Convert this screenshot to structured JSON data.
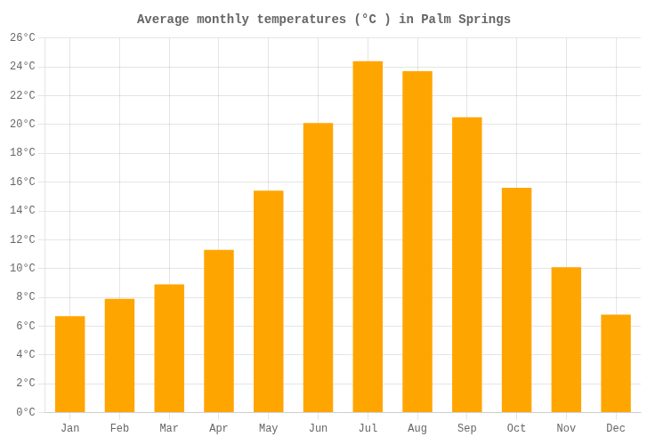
{
  "chart_data": {
    "type": "bar",
    "title": "Average monthly temperatures (°C ) in Palm Springs",
    "categories": [
      "Jan",
      "Feb",
      "Mar",
      "Apr",
      "May",
      "Jun",
      "Jul",
      "Aug",
      "Sep",
      "Oct",
      "Nov",
      "Dec"
    ],
    "values": [
      6.7,
      7.9,
      8.9,
      11.3,
      15.4,
      20.1,
      24.4,
      23.7,
      20.5,
      15.6,
      10.1,
      6.8
    ],
    "color": "#FFA500",
    "ylim": [
      0,
      26
    ],
    "yticks": [
      {
        "value": 0,
        "label": "0°C"
      },
      {
        "value": 2,
        "label": "2°C"
      },
      {
        "value": 4,
        "label": "4°C"
      },
      {
        "value": 6,
        "label": "6°C"
      },
      {
        "value": 8,
        "label": "8°C"
      },
      {
        "value": 10,
        "label": "10°C"
      },
      {
        "value": 12,
        "label": "12°C"
      },
      {
        "value": 14,
        "label": "14°C"
      },
      {
        "value": 16,
        "label": "16°C"
      },
      {
        "value": 18,
        "label": "18°C"
      },
      {
        "value": 20,
        "label": "20°C"
      },
      {
        "value": 22,
        "label": "22°C"
      },
      {
        "value": 24,
        "label": "24°C"
      },
      {
        "value": 26,
        "label": "26°C"
      }
    ],
    "grid": true
  }
}
